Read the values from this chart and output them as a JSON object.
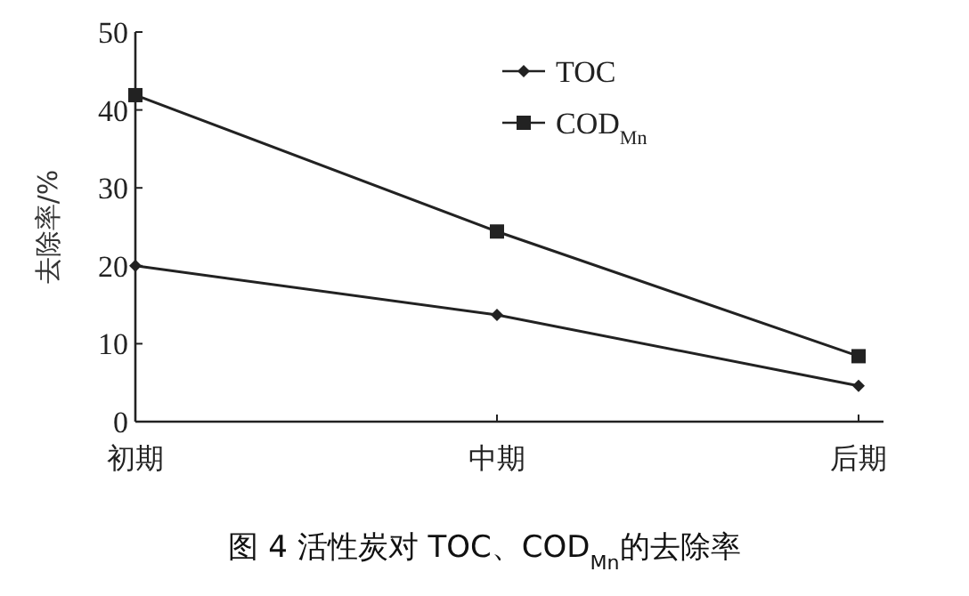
{
  "chart_data": {
    "type": "line",
    "title": "图 4  活性炭对 TOC、COD$_{Mn}$的去除率",
    "ylabel": "去除率/%",
    "categories": [
      "初期",
      "中期",
      "后期"
    ],
    "series": [
      {
        "name": "TOC",
        "color": "#222222",
        "marker": "diamond",
        "values": [
          20.0,
          13.7,
          4.6
        ]
      },
      {
        "name": "COD$_{Mn}$",
        "color": "#222222",
        "marker": "square",
        "values": [
          41.9,
          24.4,
          8.4
        ]
      }
    ],
    "ylim": [
      0,
      50
    ],
    "yticks": [
      0,
      10,
      20,
      30,
      40,
      50
    ],
    "grid": false,
    "legend": "top right"
  }
}
